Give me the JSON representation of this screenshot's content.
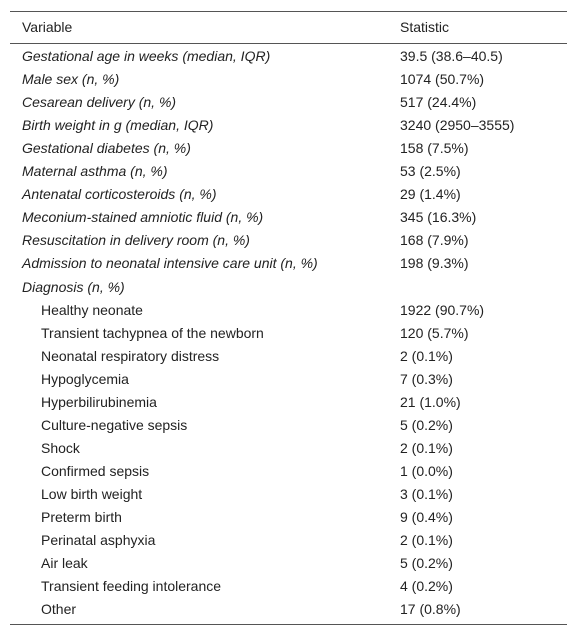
{
  "table": {
    "header": [
      "Variable",
      "Statistic"
    ],
    "rows": [
      [
        "Gestational age in weeks (median, IQR)",
        "39.5 (38.6–40.5)"
      ],
      [
        "Male sex (n, %)",
        "1074 (50.7%)"
      ],
      [
        "Cesarean delivery (n, %)",
        "517 (24.4%)"
      ],
      [
        "Birth weight in g (median, IQR)",
        "3240 (2950–3555)"
      ],
      [
        "Gestational diabetes (n, %)",
        "158 (7.5%)"
      ],
      [
        "Maternal asthma (n, %)",
        "53 (2.5%)"
      ],
      [
        "Antenatal corticosteroids (n, %)",
        "29 (1.4%)"
      ],
      [
        "Meconium-stained amniotic fluid (n, %)",
        "345 (16.3%)"
      ],
      [
        "Resuscitation in delivery room (n, %)",
        "168 (7.9%)"
      ],
      [
        "Admission to neonatal intensive care unit (n, %)",
        "198 (9.3%)"
      ]
    ],
    "group": {
      "label": "Diagnosis (n, %)",
      "rows": [
        [
          "Healthy neonate",
          "1922 (90.7%)"
        ],
        [
          "Transient tachypnea of the newborn",
          "120 (5.7%)"
        ],
        [
          "Neonatal respiratory distress",
          "2 (0.1%)"
        ],
        [
          "Hypoglycemia",
          "7 (0.3%)"
        ],
        [
          "Hyperbilirubinemia",
          "21 (1.0%)"
        ],
        [
          "Culture-negative sepsis",
          "5 (0.2%)"
        ],
        [
          "Shock",
          "2 (0.1%)"
        ],
        [
          "Confirmed sepsis",
          "1 (0.0%)"
        ],
        [
          "Low birth weight",
          "3 (0.1%)"
        ],
        [
          "Preterm birth",
          "9 (0.4%)"
        ],
        [
          "Perinatal asphyxia",
          "2 (0.1%)"
        ],
        [
          "Air leak",
          "5 (0.2%)"
        ],
        [
          "Transient feeding intolerance",
          "4 (0.2%)"
        ],
        [
          "Other",
          "17 (0.8%)"
        ]
      ]
    }
  }
}
